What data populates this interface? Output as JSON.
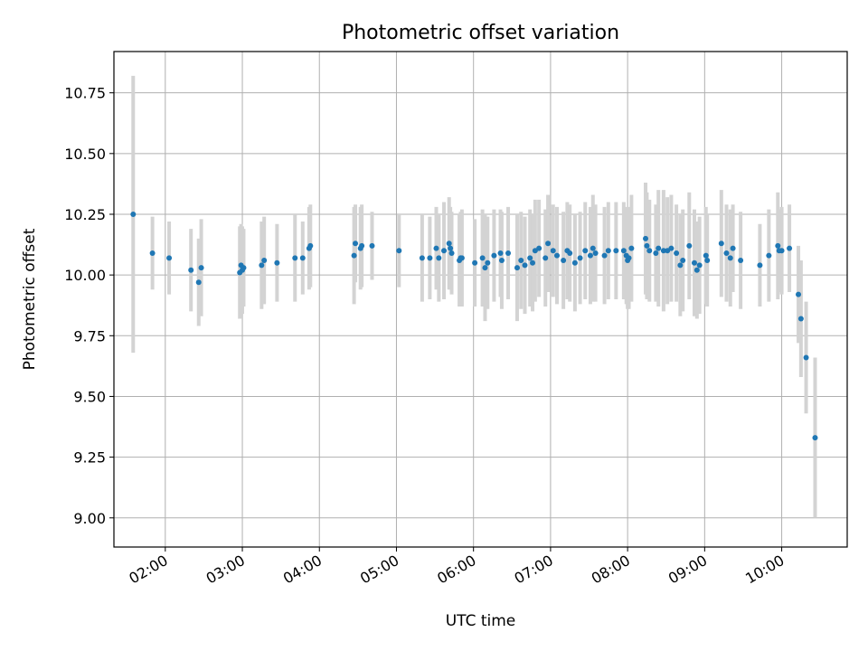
{
  "chart_data": {
    "type": "scatter",
    "title": "Photometric offset variation",
    "xlabel": "UTC time",
    "ylabel": "Photometric offset",
    "x_axis": {
      "kind": "time",
      "unit": "hours UTC",
      "xlim": [
        "01:20",
        "10:51"
      ]
    },
    "ylim": [
      8.88,
      10.92
    ],
    "xticks": [
      "02:00",
      "03:00",
      "04:00",
      "05:00",
      "06:00",
      "07:00",
      "08:00",
      "09:00",
      "10:00"
    ],
    "yticks": [
      "9.00",
      "9.25",
      "9.50",
      "9.75",
      "10.00",
      "10.25",
      "10.50",
      "10.75"
    ],
    "grid": true,
    "colors": {
      "marker": "#1f77b4",
      "errorbar": "#d3d3d3",
      "grid": "#b0b0b0",
      "axis": "#000000"
    },
    "series": [
      {
        "x": [
          "01:35",
          "01:50",
          "02:03",
          "02:20",
          "02:26",
          "02:28",
          "02:58",
          "02:59",
          "03:00",
          "03:01",
          "03:15",
          "03:17",
          "03:27",
          "03:41",
          "03:47",
          "03:52",
          "03:53",
          "04:27",
          "04:28",
          "04:32",
          "04:33",
          "04:41",
          "05:02",
          "05:20",
          "05:26",
          "05:31",
          "05:33",
          "05:37",
          "05:41",
          "05:42",
          "05:43",
          "05:49",
          "05:50",
          "05:51",
          "06:01",
          "06:07",
          "06:09",
          "06:11",
          "06:16",
          "06:21",
          "06:22",
          "06:27",
          "06:34",
          "06:37",
          "06:40",
          "06:44",
          "06:46",
          "06:48",
          "06:51",
          "06:56",
          "06:58",
          "07:02",
          "07:05",
          "07:10",
          "07:13",
          "07:15",
          "07:19",
          "07:23",
          "07:27",
          "07:31",
          "07:33",
          "07:35",
          "07:42",
          "07:45",
          "07:51",
          "07:57",
          "07:59",
          "08:00",
          "08:01",
          "08:03",
          "08:14",
          "08:15",
          "08:17",
          "08:22",
          "08:24",
          "08:28",
          "08:31",
          "08:34",
          "08:38",
          "08:41",
          "08:43",
          "08:48",
          "08:52",
          "08:54",
          "08:56",
          "09:01",
          "09:02",
          "09:13",
          "09:17",
          "09:20",
          "09:22",
          "09:28",
          "09:43",
          "09:50",
          "09:57",
          "09:58",
          "10:00",
          "10:06",
          "10:13",
          "10:15",
          "10:19",
          "10:26"
        ],
        "y": [
          10.25,
          10.09,
          10.07,
          10.02,
          9.97,
          10.03,
          10.01,
          10.04,
          10.02,
          10.03,
          10.04,
          10.06,
          10.05,
          10.07,
          10.07,
          10.11,
          10.12,
          10.08,
          10.13,
          10.11,
          10.12,
          10.12,
          10.1,
          10.07,
          10.07,
          10.11,
          10.07,
          10.1,
          10.13,
          10.11,
          10.09,
          10.06,
          10.07,
          10.07,
          10.05,
          10.07,
          10.03,
          10.05,
          10.08,
          10.09,
          10.06,
          10.09,
          10.03,
          10.06,
          10.04,
          10.07,
          10.05,
          10.1,
          10.11,
          10.07,
          10.13,
          10.1,
          10.08,
          10.06,
          10.1,
          10.09,
          10.05,
          10.07,
          10.1,
          10.08,
          10.11,
          10.09,
          10.08,
          10.1,
          10.1,
          10.1,
          10.08,
          10.06,
          10.07,
          10.11,
          10.15,
          10.12,
          10.1,
          10.09,
          10.11,
          10.1,
          10.1,
          10.11,
          10.09,
          10.04,
          10.06,
          10.12,
          10.05,
          10.02,
          10.04,
          10.08,
          10.06,
          10.13,
          10.09,
          10.07,
          10.11,
          10.06,
          10.04,
          10.08,
          10.12,
          10.1,
          10.1,
          10.11,
          9.92,
          9.82,
          9.66,
          9.33
        ],
        "err": [
          0.57,
          0.15,
          0.15,
          0.17,
          0.18,
          0.2,
          0.19,
          0.17,
          0.18,
          0.16,
          0.18,
          0.18,
          0.16,
          0.18,
          0.15,
          0.17,
          0.17,
          0.2,
          0.16,
          0.17,
          0.17,
          0.14,
          0.15,
          0.18,
          0.17,
          0.17,
          0.18,
          0.2,
          0.19,
          0.17,
          0.17,
          0.19,
          0.19,
          0.2,
          0.18,
          0.2,
          0.22,
          0.19,
          0.19,
          0.18,
          0.2,
          0.19,
          0.22,
          0.2,
          0.2,
          0.2,
          0.2,
          0.21,
          0.2,
          0.2,
          0.2,
          0.19,
          0.2,
          0.2,
          0.2,
          0.2,
          0.2,
          0.19,
          0.2,
          0.2,
          0.22,
          0.2,
          0.2,
          0.2,
          0.2,
          0.2,
          0.2,
          0.2,
          0.21,
          0.22,
          0.23,
          0.22,
          0.21,
          0.2,
          0.24,
          0.25,
          0.22,
          0.22,
          0.2,
          0.21,
          0.21,
          0.22,
          0.22,
          0.2,
          0.2,
          0.2,
          0.19,
          0.22,
          0.2,
          0.2,
          0.18,
          0.2,
          0.17,
          0.19,
          0.22,
          0.17,
          0.18,
          0.18,
          0.2,
          0.24,
          0.23,
          0.33
        ]
      }
    ]
  }
}
